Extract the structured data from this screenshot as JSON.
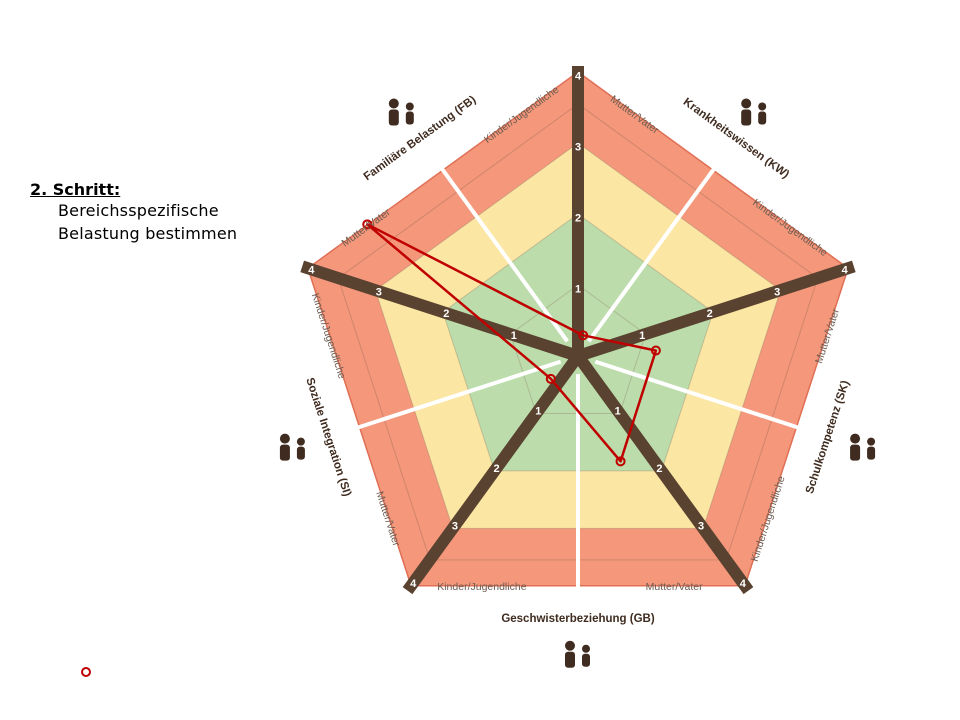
{
  "step": {
    "title": "2. Schritt:",
    "lines": [
      "Bereichsspezifische",
      "Belastung  bestimmen"
    ]
  },
  "legend": {
    "marker_note": ""
  },
  "chart_data": {
    "type": "radar",
    "title": "",
    "scale": {
      "min": 0,
      "max": 4,
      "ticks": [
        "0",
        "1",
        "2",
        "3",
        "4"
      ]
    },
    "zones": [
      {
        "range": [
          0,
          2
        ],
        "color": "#bcdcab"
      },
      {
        "range": [
          2,
          3
        ],
        "color": "#fbe6a4"
      },
      {
        "range": [
          3,
          4
        ],
        "color": "#f4977b"
      }
    ],
    "axes": [
      {
        "id": "KW-M",
        "label": "Mutter/Vater"
      },
      {
        "id": "SK-M",
        "label": "Mutter/Vater"
      },
      {
        "id": "GB-M",
        "label": "Mutter/Vater"
      },
      {
        "id": "SI-M",
        "label": "Mutter/Vater"
      },
      {
        "id": "FB-M",
        "label": "Mutter/Vater"
      }
    ],
    "sub_labels": {
      "parent": "Mutter/Vater",
      "child": "Kinder/Jugendliche"
    },
    "domains": [
      {
        "code": "KW",
        "label": "Krankheitswissen (KW)",
        "icon": "reading-person-icon"
      },
      {
        "code": "SK",
        "label": "Schulkompetenz (SK)",
        "icon": "student-desk-icon"
      },
      {
        "code": "GB",
        "label": "Geschwisterbeziehung (GB)",
        "icon": "siblings-icon"
      },
      {
        "code": "SI",
        "label": "Soziale Integration (SI)",
        "icon": "social-group-icon"
      },
      {
        "code": "FB",
        "label": "Familiäre Belastung (FB)",
        "icon": "family-icon"
      }
    ],
    "series": [
      {
        "color": "#c00000",
        "points": [
          {
            "axis": "KW-M",
            "value": 0.3
          },
          {
            "axis": "SK-M",
            "value": 1.1
          },
          {
            "axis": "GB-M",
            "value": 1.6
          },
          {
            "axis": "SI-M",
            "value": 0.5
          },
          {
            "axis": "FB-M",
            "value": 3.5
          }
        ]
      }
    ],
    "grid": true
  },
  "colors": {
    "spoke": "#5a4230",
    "divider": "#ffffff",
    "line": "#c00000",
    "outer_border": "#e06f55"
  }
}
